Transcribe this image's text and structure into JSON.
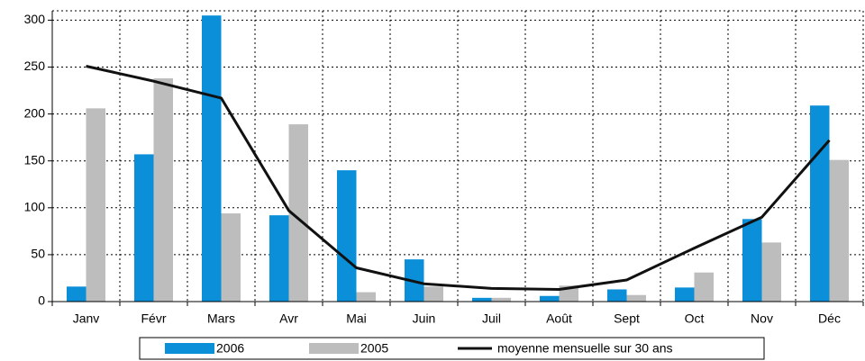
{
  "chart_data": {
    "type": "bar",
    "categories": [
      "Janv",
      "Févr",
      "Mars",
      "Avr",
      "Mai",
      "Juin",
      "Juil",
      "Août",
      "Sept",
      "Oct",
      "Nov",
      "Déc"
    ],
    "series": [
      {
        "name": "2006",
        "color": "#0a8fd8",
        "values": [
          16,
          157,
          305,
          92,
          140,
          45,
          4,
          6,
          13,
          15,
          88,
          209
        ]
      },
      {
        "name": "2005",
        "color": "#bdbdbd",
        "values": [
          206,
          238,
          94,
          189,
          10,
          16,
          4,
          17,
          7,
          31,
          63,
          151
        ]
      },
      {
        "name": "moyenne mensuelle sur 30 ans",
        "color": "#111111",
        "type": "line",
        "values": [
          251,
          235,
          217,
          97,
          36,
          19,
          14,
          13,
          23,
          57,
          90,
          172
        ]
      }
    ],
    "ylim": [
      0,
      310
    ],
    "yticks": [
      0,
      50,
      100,
      150,
      200,
      250,
      300
    ],
    "grid": true
  }
}
